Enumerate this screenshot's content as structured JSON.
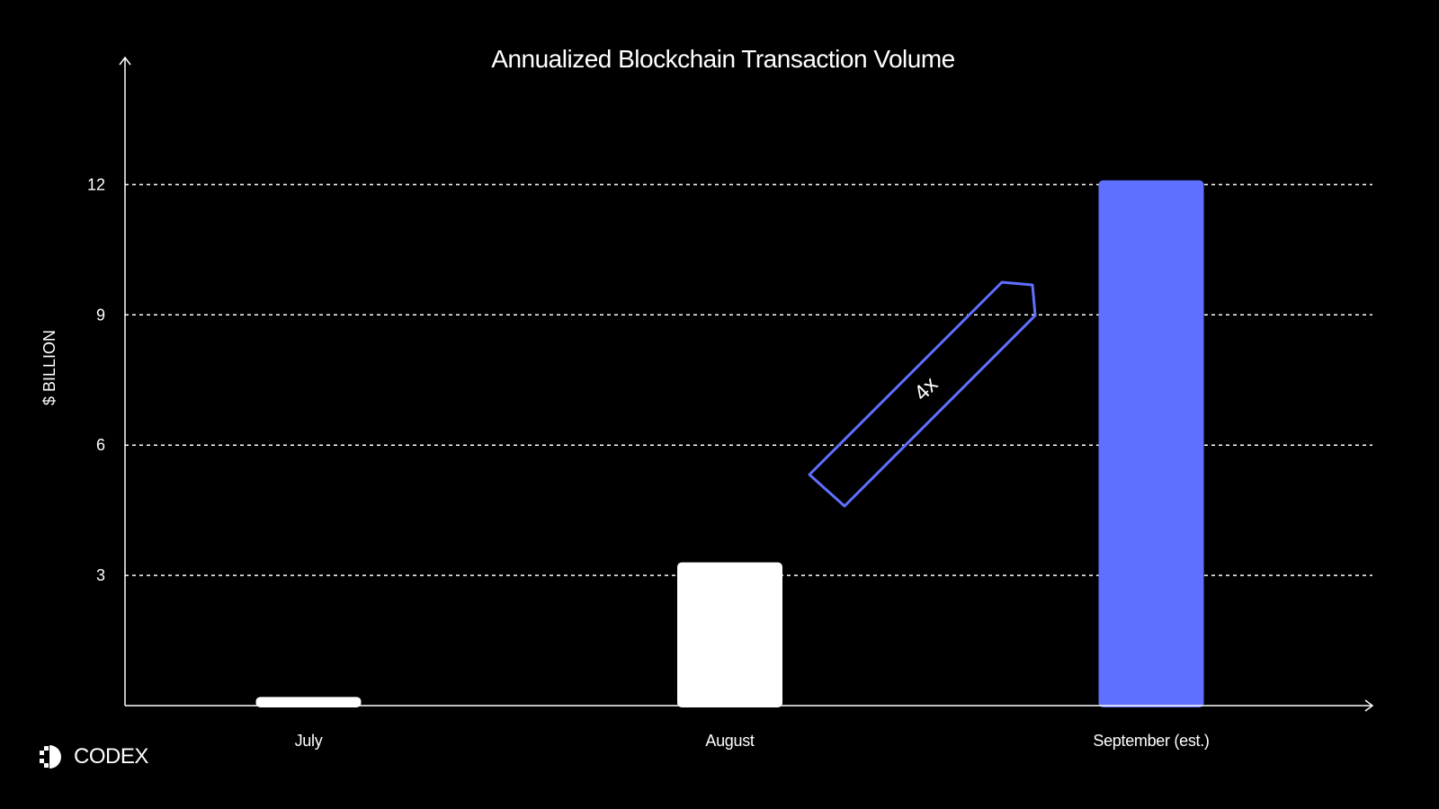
{
  "brand": {
    "name": "CODEX",
    "logo_icon": "codex-logo-icon"
  },
  "colors": {
    "background": "#000000",
    "foreground": "#ffffff",
    "accent": "#5f6fff",
    "grid": "#ffffff"
  },
  "chart_data": {
    "type": "bar",
    "title": "Annualized Blockchain Transaction Volume",
    "xlabel": "",
    "ylabel": "$ BILLION",
    "categories": [
      "July",
      "August",
      "September (est.)"
    ],
    "values": [
      0.2,
      3.3,
      12.1
    ],
    "bar_colors": [
      "#ffffff",
      "#ffffff",
      "#5f6fff"
    ],
    "ylim": [
      0,
      15
    ],
    "yticks": [
      3,
      6,
      9,
      12
    ],
    "grid": "horizontal dashed",
    "annotation": {
      "text": "4x",
      "shape": "arrow",
      "color": "#5f6fff"
    }
  }
}
